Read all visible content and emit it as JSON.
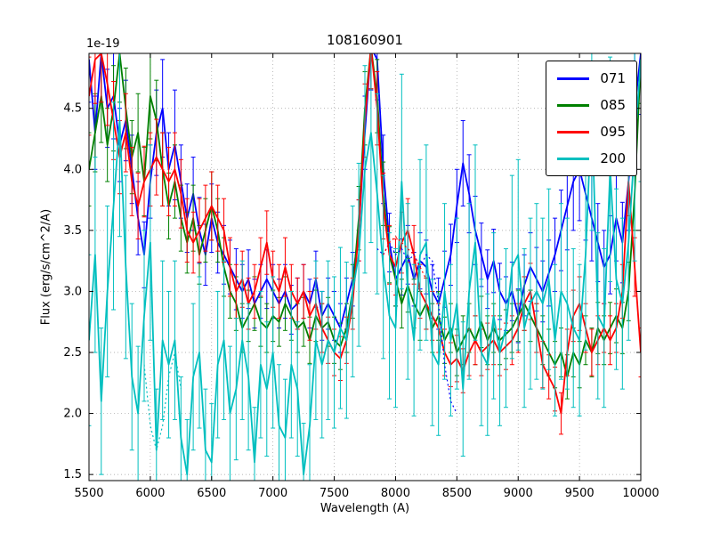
{
  "chart_data": {
    "type": "line",
    "title": "108160901",
    "xlabel": "Wavelength (A)",
    "ylabel": "Flux (erg/s/cm^2/A)",
    "y_scale_factor": "1e-19",
    "xlim": [
      5500,
      10000
    ],
    "ylim": [
      1.45,
      4.95
    ],
    "x_ticks": [
      5500,
      6000,
      6500,
      7000,
      7500,
      8000,
      8500,
      9000,
      9500,
      10000
    ],
    "y_ticks": [
      1.5,
      2.0,
      2.5,
      3.0,
      3.5,
      4.0,
      4.5
    ],
    "grid": true,
    "legend_position": "upper right",
    "x_start": 5500,
    "x_step": 50,
    "series": [
      {
        "name": "071",
        "color": "#0000ff",
        "values": [
          4.9,
          4.3,
          4.95,
          4.5,
          4.6,
          4.2,
          4.4,
          4.0,
          3.6,
          3.3,
          3.9,
          4.3,
          4.5,
          4.0,
          4.2,
          3.9,
          3.6,
          3.8,
          3.5,
          3.3,
          3.6,
          3.4,
          3.3,
          3.2,
          3.1,
          3.0,
          3.1,
          2.9,
          3.0,
          3.1,
          3.0,
          2.9,
          3.0,
          2.85,
          2.9,
          3.0,
          2.9,
          3.1,
          2.8,
          2.9,
          2.8,
          2.7,
          2.9,
          3.1,
          3.5,
          4.3,
          5.0,
          4.9,
          4.0,
          3.4,
          3.1,
          3.2,
          3.3,
          3.1,
          3.25,
          3.2,
          3.0,
          2.9,
          3.1,
          3.3,
          3.7,
          4.05,
          3.8,
          3.5,
          3.3,
          3.1,
          3.25,
          3.0,
          2.9,
          3.0,
          2.8,
          3.05,
          3.2,
          3.1,
          3.0,
          3.15,
          3.3,
          3.5,
          3.7,
          3.9,
          4.0,
          3.8,
          3.6,
          3.4,
          3.2,
          3.3,
          3.6,
          3.4,
          3.9,
          4.5,
          4.95
        ],
        "errors": [
          0.35,
          0.3,
          0.4,
          0.32,
          0.35,
          0.3,
          0.33,
          0.28,
          0.3,
          0.27,
          0.3,
          0.35,
          0.4,
          0.3,
          0.45,
          0.3,
          0.28,
          0.3,
          0.27,
          0.25,
          0.28,
          0.25,
          0.24,
          0.22,
          0.25,
          0.22,
          0.24,
          0.2,
          0.22,
          0.24,
          0.22,
          0.2,
          0.22,
          0.2,
          0.21,
          0.22,
          0.2,
          0.23,
          0.2,
          0.21,
          0.2,
          0.2,
          0.21,
          0.22,
          0.25,
          0.3,
          0.35,
          0.33,
          0.28,
          0.24,
          0.22,
          0.23,
          0.24,
          0.22,
          0.23,
          0.22,
          0.22,
          0.21,
          0.23,
          0.25,
          0.3,
          0.35,
          0.32,
          0.28,
          0.26,
          0.24,
          0.26,
          0.23,
          0.22,
          0.24,
          0.22,
          0.25,
          0.28,
          0.26,
          0.25,
          0.27,
          0.3,
          0.33,
          0.36,
          0.4,
          0.42,
          0.38,
          0.35,
          0.32,
          0.3,
          0.32,
          0.35,
          0.33,
          0.4,
          0.45,
          0.5
        ]
      },
      {
        "name": "085",
        "color": "#008000",
        "values": [
          4.0,
          4.3,
          4.6,
          4.2,
          4.5,
          4.95,
          4.5,
          4.1,
          4.3,
          3.9,
          4.6,
          4.4,
          4.0,
          3.7,
          3.9,
          3.6,
          3.4,
          3.6,
          3.3,
          3.5,
          3.7,
          3.5,
          3.2,
          3.0,
          2.9,
          2.7,
          2.8,
          2.9,
          2.75,
          2.7,
          2.8,
          2.75,
          2.9,
          2.8,
          2.7,
          2.75,
          2.6,
          2.8,
          2.7,
          2.75,
          2.6,
          2.55,
          2.7,
          3.0,
          3.6,
          4.5,
          5.0,
          4.6,
          3.8,
          3.3,
          3.1,
          2.9,
          3.05,
          2.9,
          2.8,
          2.9,
          2.7,
          2.8,
          2.6,
          2.7,
          2.5,
          2.6,
          2.7,
          2.6,
          2.75,
          2.6,
          2.7,
          2.6,
          2.65,
          2.7,
          2.8,
          2.9,
          2.8,
          2.7,
          2.6,
          2.5,
          2.4,
          2.5,
          2.3,
          2.5,
          2.4,
          2.6,
          2.5,
          2.7,
          2.6,
          2.7,
          2.8,
          2.7,
          3.0,
          3.8,
          4.9
        ],
        "errors": [
          0.3,
          0.32,
          0.38,
          0.3,
          0.35,
          0.4,
          0.33,
          0.3,
          0.32,
          0.28,
          0.35,
          0.33,
          0.3,
          0.27,
          0.3,
          0.27,
          0.25,
          0.27,
          0.24,
          0.26,
          0.28,
          0.26,
          0.24,
          0.22,
          0.22,
          0.2,
          0.21,
          0.22,
          0.2,
          0.2,
          0.21,
          0.2,
          0.22,
          0.2,
          0.2,
          0.2,
          0.19,
          0.21,
          0.2,
          0.2,
          0.19,
          0.19,
          0.2,
          0.22,
          0.26,
          0.3,
          0.34,
          0.3,
          0.26,
          0.23,
          0.22,
          0.2,
          0.22,
          0.2,
          0.2,
          0.21,
          0.2,
          0.2,
          0.19,
          0.2,
          0.19,
          0.2,
          0.2,
          0.2,
          0.21,
          0.2,
          0.2,
          0.2,
          0.2,
          0.2,
          0.21,
          0.22,
          0.21,
          0.2,
          0.2,
          0.19,
          0.19,
          0.2,
          0.18,
          0.2,
          0.19,
          0.2,
          0.2,
          0.21,
          0.2,
          0.21,
          0.22,
          0.21,
          0.24,
          0.3,
          0.36
        ]
      },
      {
        "name": "095",
        "color": "#ff0000",
        "values": [
          4.6,
          4.9,
          4.95,
          4.7,
          4.4,
          4.1,
          4.3,
          3.9,
          3.7,
          3.9,
          4.0,
          4.1,
          4.0,
          3.9,
          4.0,
          3.8,
          3.5,
          3.4,
          3.5,
          3.6,
          3.7,
          3.6,
          3.5,
          3.2,
          3.0,
          3.1,
          2.9,
          3.0,
          3.2,
          3.4,
          3.1,
          3.0,
          3.2,
          3.0,
          2.9,
          3.0,
          2.8,
          2.9,
          2.7,
          2.6,
          2.5,
          2.45,
          2.6,
          2.9,
          3.5,
          4.4,
          5.0,
          4.5,
          3.7,
          3.3,
          3.2,
          3.4,
          3.5,
          3.3,
          3.0,
          2.9,
          2.8,
          2.7,
          2.5,
          2.4,
          2.45,
          2.35,
          2.5,
          2.6,
          2.5,
          2.55,
          2.6,
          2.5,
          2.55,
          2.6,
          2.7,
          2.9,
          3.0,
          2.7,
          2.4,
          2.3,
          2.2,
          2.0,
          2.5,
          2.8,
          2.9,
          2.7,
          2.5,
          2.6,
          2.7,
          2.6,
          2.7,
          3.0,
          3.9,
          3.2,
          2.5
        ],
        "errors": [
          0.32,
          0.36,
          0.4,
          0.34,
          0.32,
          0.3,
          0.32,
          0.28,
          0.27,
          0.29,
          0.3,
          0.31,
          0.3,
          0.28,
          0.3,
          0.28,
          0.26,
          0.25,
          0.26,
          0.27,
          0.28,
          0.27,
          0.26,
          0.24,
          0.22,
          0.23,
          0.21,
          0.22,
          0.24,
          0.26,
          0.23,
          0.22,
          0.24,
          0.22,
          0.21,
          0.22,
          0.2,
          0.21,
          0.2,
          0.19,
          0.19,
          0.18,
          0.19,
          0.21,
          0.25,
          0.3,
          0.34,
          0.3,
          0.27,
          0.24,
          0.23,
          0.25,
          0.26,
          0.24,
          0.22,
          0.21,
          0.2,
          0.2,
          0.19,
          0.18,
          0.19,
          0.18,
          0.19,
          0.2,
          0.19,
          0.19,
          0.2,
          0.19,
          0.19,
          0.2,
          0.2,
          0.22,
          0.23,
          0.2,
          0.19,
          0.18,
          0.18,
          0.17,
          0.19,
          0.21,
          0.22,
          0.2,
          0.19,
          0.2,
          0.2,
          0.2,
          0.2,
          0.22,
          0.28,
          0.24,
          0.2
        ]
      },
      {
        "name": "200",
        "color": "#00bfbf",
        "values": [
          2.6,
          3.3,
          2.1,
          3.0,
          3.7,
          4.4,
          3.2,
          2.3,
          2.0,
          2.8,
          3.4,
          1.7,
          2.6,
          2.4,
          2.6,
          1.8,
          1.5,
          2.3,
          2.5,
          1.7,
          1.6,
          2.4,
          2.6,
          2.0,
          2.2,
          2.6,
          2.3,
          1.6,
          2.4,
          2.2,
          2.5,
          1.9,
          1.8,
          2.4,
          2.2,
          1.5,
          1.9,
          2.6,
          2.4,
          2.6,
          2.5,
          2.7,
          2.6,
          3.0,
          3.3,
          4.0,
          4.3,
          3.8,
          3.2,
          2.8,
          2.7,
          3.9,
          3.0,
          2.6,
          3.3,
          3.4,
          2.5,
          2.4,
          3.0,
          2.6,
          2.9,
          2.2,
          3.0,
          3.4,
          2.5,
          2.4,
          2.8,
          2.5,
          2.7,
          3.2,
          3.3,
          2.7,
          2.9,
          3.0,
          2.9,
          3.1,
          2.6,
          3.0,
          2.9,
          2.7,
          2.6,
          3.3,
          4.5,
          2.8,
          2.7,
          4.0,
          3.1,
          2.9,
          3.4,
          4.2,
          4.9
        ],
        "errors": [
          0.7,
          0.8,
          0.6,
          0.7,
          0.85,
          0.95,
          0.75,
          0.6,
          0.55,
          0.7,
          0.8,
          0.5,
          0.65,
          0.6,
          0.65,
          0.5,
          0.45,
          0.6,
          0.62,
          0.5,
          0.48,
          0.6,
          0.65,
          0.55,
          0.58,
          0.65,
          0.6,
          0.45,
          0.6,
          0.55,
          0.62,
          0.5,
          0.48,
          0.6,
          0.55,
          0.42,
          0.5,
          0.65,
          0.6,
          0.65,
          0.62,
          0.66,
          0.64,
          0.7,
          0.75,
          0.85,
          0.9,
          0.82,
          0.75,
          0.68,
          0.65,
          0.88,
          0.72,
          0.62,
          0.78,
          0.8,
          0.6,
          0.58,
          0.72,
          0.62,
          0.7,
          0.55,
          0.72,
          0.8,
          0.6,
          0.58,
          0.68,
          0.6,
          0.65,
          0.75,
          0.78,
          0.65,
          0.7,
          0.72,
          0.7,
          0.74,
          0.62,
          0.72,
          0.7,
          0.65,
          0.62,
          0.78,
          1.0,
          0.68,
          0.65,
          0.92,
          0.74,
          0.7,
          0.8,
          0.95,
          1.0
        ]
      }
    ],
    "dotted_segments": [
      {
        "series": "200",
        "color": "#00bfbf",
        "x_start": 5950,
        "x_step": 50,
        "values": [
          2.4,
          1.9,
          1.7,
          1.9,
          2.3,
          2.5,
          2.2
        ]
      },
      {
        "series": "071",
        "color": "#0000ff",
        "x_start": 7850,
        "x_step": 50,
        "values": [
          3.35,
          3.3,
          3.4,
          3.3,
          3.35,
          3.25,
          3.3,
          3.2,
          3.3,
          3.25,
          2.9,
          2.4,
          2.1,
          2.0
        ]
      },
      {
        "series": "095",
        "color": "#ff0000",
        "x_start": 7900,
        "x_step": 50,
        "values": [
          3.3,
          3.4,
          3.45,
          3.4,
          3.35,
          3.3,
          3.2,
          3.1
        ]
      }
    ]
  }
}
